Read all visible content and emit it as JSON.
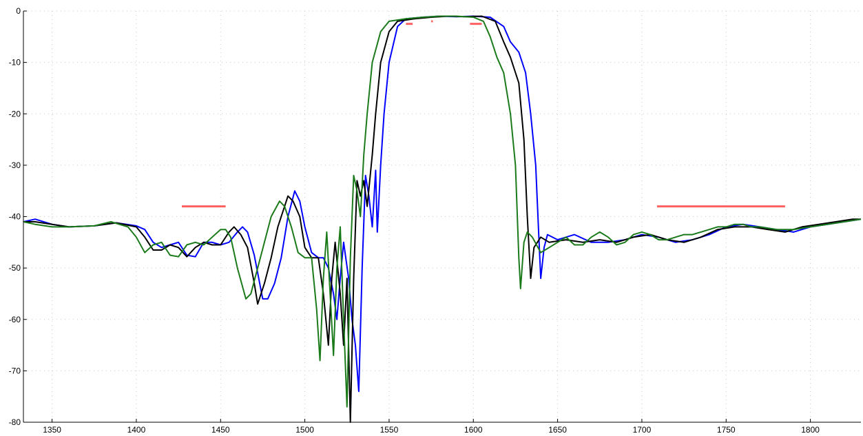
{
  "chart_data": {
    "type": "line",
    "title": "",
    "xlabel": "",
    "ylabel": "",
    "xlim": [
      1333,
      1830
    ],
    "ylim": [
      -80,
      0
    ],
    "x_ticks": [
      1350,
      1400,
      1450,
      1500,
      1550,
      1600,
      1650,
      1700,
      1750,
      1800
    ],
    "y_ticks": [
      0,
      -10,
      -20,
      -30,
      -40,
      -50,
      -60,
      -70,
      -80
    ],
    "grid": "dotted",
    "legend": "none",
    "series": [
      {
        "color": "#0000ff",
        "points": [
          [
            1333,
            -41
          ],
          [
            1340,
            -40.5
          ],
          [
            1350,
            -41.5
          ],
          [
            1360,
            -42
          ],
          [
            1375,
            -41.8
          ],
          [
            1388,
            -41.2
          ],
          [
            1400,
            -41.8
          ],
          [
            1405,
            -42.5
          ],
          [
            1410,
            -45
          ],
          [
            1415,
            -46
          ],
          [
            1420,
            -45.5
          ],
          [
            1425,
            -45
          ],
          [
            1430,
            -47.5
          ],
          [
            1435,
            -47.8
          ],
          [
            1440,
            -45
          ],
          [
            1445,
            -45
          ],
          [
            1450,
            -45.5
          ],
          [
            1455,
            -45
          ],
          [
            1460,
            -43
          ],
          [
            1463,
            -42
          ],
          [
            1466,
            -43
          ],
          [
            1470,
            -47.5
          ],
          [
            1475,
            -56
          ],
          [
            1478,
            -56
          ],
          [
            1482,
            -53
          ],
          [
            1486,
            -48
          ],
          [
            1490,
            -40
          ],
          [
            1494,
            -35
          ],
          [
            1497,
            -37
          ],
          [
            1500,
            -42
          ],
          [
            1504,
            -47
          ],
          [
            1508,
            -48
          ],
          [
            1511,
            -48
          ],
          [
            1514,
            -50
          ],
          [
            1517,
            -55
          ],
          [
            1519,
            -60
          ],
          [
            1521,
            -52
          ],
          [
            1523,
            -45
          ],
          [
            1526,
            -52
          ],
          [
            1528,
            -60
          ],
          [
            1530,
            -65
          ],
          [
            1532,
            -74
          ],
          [
            1534,
            -50
          ],
          [
            1536,
            -32
          ],
          [
            1538,
            -36
          ],
          [
            1540,
            -42
          ],
          [
            1542,
            -31
          ],
          [
            1543,
            -43
          ],
          [
            1545,
            -30
          ],
          [
            1547,
            -20
          ],
          [
            1550,
            -10
          ],
          [
            1555,
            -3
          ],
          [
            1560,
            -1.5
          ],
          [
            1570,
            -1.2
          ],
          [
            1580,
            -1.0
          ],
          [
            1590,
            -1.1
          ],
          [
            1600,
            -1.0
          ],
          [
            1610,
            -1.2
          ],
          [
            1618,
            -3
          ],
          [
            1622,
            -6
          ],
          [
            1627,
            -8
          ],
          [
            1631,
            -12
          ],
          [
            1634,
            -20
          ],
          [
            1637,
            -30
          ],
          [
            1639,
            -45
          ],
          [
            1640,
            -52
          ],
          [
            1642,
            -46
          ],
          [
            1644,
            -43.5
          ],
          [
            1650,
            -44.5
          ],
          [
            1660,
            -43.5
          ],
          [
            1670,
            -45
          ],
          [
            1680,
            -45
          ],
          [
            1690,
            -44.5
          ],
          [
            1700,
            -43.5
          ],
          [
            1710,
            -44
          ],
          [
            1720,
            -45
          ],
          [
            1730,
            -44.5
          ],
          [
            1740,
            -43.5
          ],
          [
            1750,
            -42
          ],
          [
            1760,
            -41.5
          ],
          [
            1770,
            -42
          ],
          [
            1780,
            -42.5
          ],
          [
            1790,
            -43
          ],
          [
            1800,
            -42
          ],
          [
            1810,
            -41.5
          ],
          [
            1820,
            -41
          ],
          [
            1830,
            -40.5
          ]
        ]
      },
      {
        "color": "#000000",
        "points": [
          [
            1333,
            -41
          ],
          [
            1340,
            -41
          ],
          [
            1350,
            -41.5
          ],
          [
            1360,
            -42
          ],
          [
            1375,
            -41.8
          ],
          [
            1388,
            -41.2
          ],
          [
            1400,
            -42
          ],
          [
            1405,
            -44
          ],
          [
            1410,
            -46.5
          ],
          [
            1415,
            -46.5
          ],
          [
            1420,
            -45.5
          ],
          [
            1425,
            -46
          ],
          [
            1430,
            -47.8
          ],
          [
            1435,
            -46
          ],
          [
            1440,
            -45
          ],
          [
            1445,
            -45.5
          ],
          [
            1450,
            -45.5
          ],
          [
            1455,
            -43
          ],
          [
            1458,
            -42
          ],
          [
            1462,
            -43.5
          ],
          [
            1466,
            -46
          ],
          [
            1470,
            -53
          ],
          [
            1472,
            -57
          ],
          [
            1476,
            -53
          ],
          [
            1480,
            -48
          ],
          [
            1484,
            -42
          ],
          [
            1488,
            -38
          ],
          [
            1490,
            -36
          ],
          [
            1493,
            -37
          ],
          [
            1497,
            -40
          ],
          [
            1500,
            -46
          ],
          [
            1504,
            -48
          ],
          [
            1508,
            -48
          ],
          [
            1511,
            -55
          ],
          [
            1514,
            -65
          ],
          [
            1516,
            -52
          ],
          [
            1518,
            -45
          ],
          [
            1521,
            -55
          ],
          [
            1523,
            -65
          ],
          [
            1525,
            -52
          ],
          [
            1527,
            -80
          ],
          [
            1529,
            -52
          ],
          [
            1531,
            -33
          ],
          [
            1533,
            -36
          ],
          [
            1535,
            -33
          ],
          [
            1537,
            -38
          ],
          [
            1540,
            -28
          ],
          [
            1542,
            -20
          ],
          [
            1545,
            -10
          ],
          [
            1550,
            -4
          ],
          [
            1555,
            -2
          ],
          [
            1565,
            -1.5
          ],
          [
            1575,
            -1.2
          ],
          [
            1585,
            -1.0
          ],
          [
            1595,
            -1.1
          ],
          [
            1605,
            -1.0
          ],
          [
            1613,
            -2
          ],
          [
            1618,
            -6
          ],
          [
            1622,
            -9
          ],
          [
            1627,
            -14
          ],
          [
            1630,
            -25
          ],
          [
            1632,
            -40
          ],
          [
            1634,
            -52
          ],
          [
            1636,
            -46
          ],
          [
            1638,
            -45
          ],
          [
            1640,
            -44
          ],
          [
            1645,
            -45
          ],
          [
            1655,
            -44.5
          ],
          [
            1665,
            -45
          ],
          [
            1675,
            -44.5
          ],
          [
            1685,
            -45
          ],
          [
            1695,
            -44
          ],
          [
            1705,
            -43.5
          ],
          [
            1715,
            -44.5
          ],
          [
            1725,
            -45
          ],
          [
            1735,
            -44
          ],
          [
            1745,
            -42.5
          ],
          [
            1755,
            -42
          ],
          [
            1765,
            -42
          ],
          [
            1775,
            -42.5
          ],
          [
            1785,
            -43
          ],
          [
            1795,
            -42
          ],
          [
            1805,
            -41.5
          ],
          [
            1815,
            -41
          ],
          [
            1825,
            -40.5
          ],
          [
            1830,
            -40.5
          ]
        ]
      },
      {
        "color": "#1a7a1a",
        "points": [
          [
            1333,
            -41
          ],
          [
            1340,
            -41.5
          ],
          [
            1350,
            -42
          ],
          [
            1360,
            -42
          ],
          [
            1375,
            -41.8
          ],
          [
            1385,
            -41
          ],
          [
            1395,
            -42
          ],
          [
            1400,
            -44
          ],
          [
            1405,
            -47
          ],
          [
            1410,
            -45.5
          ],
          [
            1415,
            -45
          ],
          [
            1420,
            -47.5
          ],
          [
            1425,
            -47.8
          ],
          [
            1430,
            -45.5
          ],
          [
            1435,
            -45
          ],
          [
            1440,
            -45.5
          ],
          [
            1445,
            -44
          ],
          [
            1450,
            -42.5
          ],
          [
            1453,
            -42.5
          ],
          [
            1456,
            -44
          ],
          [
            1460,
            -50
          ],
          [
            1465,
            -56
          ],
          [
            1468,
            -55
          ],
          [
            1472,
            -50
          ],
          [
            1476,
            -45
          ],
          [
            1480,
            -40
          ],
          [
            1485,
            -37
          ],
          [
            1488,
            -38
          ],
          [
            1492,
            -42
          ],
          [
            1496,
            -47
          ],
          [
            1500,
            -48
          ],
          [
            1504,
            -48
          ],
          [
            1507,
            -58
          ],
          [
            1509,
            -68
          ],
          [
            1511,
            -52
          ],
          [
            1513,
            -43
          ],
          [
            1515,
            -55
          ],
          [
            1517,
            -67
          ],
          [
            1519,
            -50
          ],
          [
            1521,
            -42
          ],
          [
            1523,
            -60
          ],
          [
            1525,
            -77
          ],
          [
            1527,
            -48
          ],
          [
            1529,
            -32
          ],
          [
            1531,
            -35
          ],
          [
            1533,
            -40
          ],
          [
            1535,
            -28
          ],
          [
            1537,
            -20
          ],
          [
            1540,
            -10
          ],
          [
            1545,
            -4
          ],
          [
            1550,
            -2
          ],
          [
            1560,
            -1.5
          ],
          [
            1570,
            -1.2
          ],
          [
            1580,
            -1.0
          ],
          [
            1590,
            -1.0
          ],
          [
            1600,
            -1.2
          ],
          [
            1606,
            -2
          ],
          [
            1610,
            -5
          ],
          [
            1614,
            -9
          ],
          [
            1618,
            -12
          ],
          [
            1622,
            -20
          ],
          [
            1625,
            -30
          ],
          [
            1627,
            -48
          ],
          [
            1628,
            -54
          ],
          [
            1630,
            -45
          ],
          [
            1632,
            -43
          ],
          [
            1635,
            -44
          ],
          [
            1640,
            -47
          ],
          [
            1645,
            -46
          ],
          [
            1650,
            -45
          ],
          [
            1655,
            -44
          ],
          [
            1660,
            -45.5
          ],
          [
            1665,
            -45.5
          ],
          [
            1670,
            -44
          ],
          [
            1675,
            -43
          ],
          [
            1680,
            -44
          ],
          [
            1685,
            -45.5
          ],
          [
            1690,
            -45
          ],
          [
            1695,
            -43.5
          ],
          [
            1700,
            -43
          ],
          [
            1705,
            -43.5
          ],
          [
            1710,
            -44.5
          ],
          [
            1715,
            -44.5
          ],
          [
            1720,
            -44
          ],
          [
            1725,
            -43.5
          ],
          [
            1730,
            -43.5
          ],
          [
            1735,
            -43
          ],
          [
            1740,
            -42.5
          ],
          [
            1745,
            -42
          ],
          [
            1750,
            -42
          ],
          [
            1755,
            -41.5
          ],
          [
            1760,
            -41.5
          ],
          [
            1765,
            -42
          ],
          [
            1770,
            -42
          ],
          [
            1780,
            -42.5
          ],
          [
            1790,
            -42.5
          ],
          [
            1800,
            -42
          ],
          [
            1810,
            -41.5
          ],
          [
            1820,
            -41
          ],
          [
            1830,
            -40.5
          ]
        ]
      },
      {
        "color": "#ff6060",
        "segments": [
          [
            [
              1427,
              -38
            ],
            [
              1453,
              -38
            ]
          ],
          [
            [
              1709,
              -38
            ],
            [
              1785,
              -38
            ]
          ],
          [
            [
              1560,
              -2.5
            ],
            [
              1564,
              -2.5
            ]
          ],
          [
            [
              1575,
              -2.0
            ],
            [
              1576,
              -2.0
            ]
          ],
          [
            [
              1598,
              -2.5
            ],
            [
              1605,
              -2.5
            ]
          ]
        ]
      }
    ]
  }
}
